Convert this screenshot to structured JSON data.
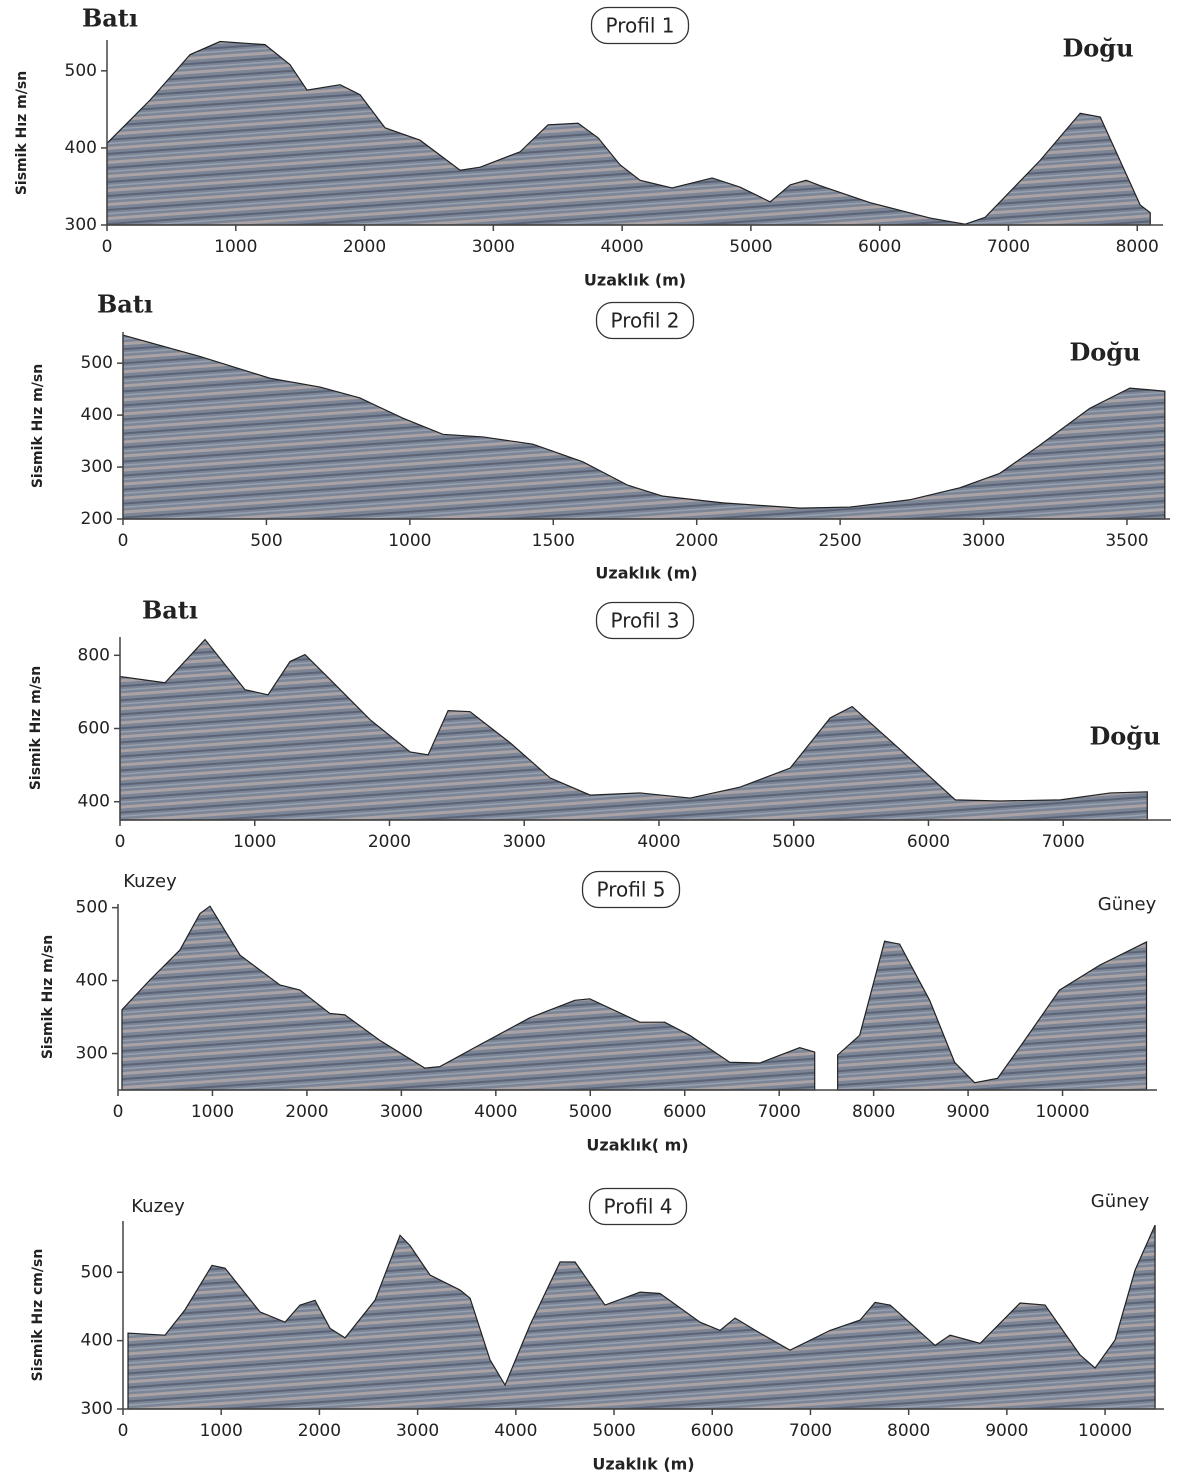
{
  "chart_data": [
    {
      "type": "area",
      "title": "Profil 1",
      "left_label": "Batı",
      "right_label": "Doğu",
      "xlabel": "Uzaklık (m)",
      "ylabel": "Sismik Hız m/sn",
      "color": "#7b8596",
      "x": [
        0,
        334,
        645,
        878,
        1227,
        1421,
        1553,
        1810,
        1965,
        2159,
        2431,
        2742,
        2898,
        3208,
        3425,
        3658,
        3814,
        3984,
        4140,
        4388,
        4699,
        4917,
        5150,
        5305,
        5429,
        5538,
        5926,
        6392,
        6664,
        6819,
        7247,
        7557,
        7713,
        8023,
        8101
      ],
      "values": [
        406,
        462,
        521,
        538,
        534,
        508,
        475,
        482,
        469,
        426,
        410,
        371,
        375,
        395,
        430,
        432,
        413,
        378,
        358,
        348,
        361,
        349,
        330,
        352,
        358,
        351,
        329,
        309,
        301,
        310,
        384,
        445,
        440,
        326,
        316
      ],
      "xlim": [
        0,
        8200
      ],
      "ylim": [
        300,
        540
      ],
      "xticks": [
        0,
        1000,
        2000,
        3000,
        4000,
        5000,
        6000,
        7000,
        8000
      ],
      "yticks": [
        300,
        400,
        500
      ]
    },
    {
      "type": "area",
      "title": "Profil 2",
      "left_label": "Batı",
      "right_label": "Doğu",
      "xlabel": "Uzaklık (m)",
      "ylabel": "Sismik Hız m/sn",
      "color": "#7b8596",
      "x": [
        0,
        268,
        512,
        687,
        826,
        976,
        1115,
        1255,
        1429,
        1603,
        1760,
        1882,
        2091,
        2360,
        2534,
        2743,
        2917,
        3057,
        3196,
        3370,
        3510,
        3632
      ],
      "values": [
        554,
        513,
        471,
        454,
        433,
        394,
        363,
        358,
        344,
        310,
        265,
        244,
        231,
        221,
        223,
        237,
        260,
        288,
        342,
        413,
        452,
        446
      ],
      "xlim": [
        0,
        3650
      ],
      "ylim": [
        200,
        560
      ],
      "xticks": [
        0,
        500,
        1000,
        1500,
        2000,
        2500,
        3000,
        3500
      ],
      "yticks": [
        200,
        300,
        400,
        500
      ]
    },
    {
      "type": "area",
      "title": "Profil 3",
      "left_label": "Batı",
      "right_label": "Doğu",
      "ylabel": "Sismik Hız m/sn",
      "color": "#7b8596",
      "x": [
        0,
        334,
        631,
        928,
        1099,
        1262,
        1373,
        1559,
        1856,
        2153,
        2287,
        2435,
        2598,
        2895,
        3192,
        3489,
        3860,
        4232,
        4603,
        4974,
        5271,
        5434,
        5791,
        6199,
        6533,
        6979,
        7350,
        7624
      ],
      "values": [
        742,
        725,
        843,
        706,
        692,
        783,
        802,
        734,
        624,
        536,
        528,
        649,
        646,
        561,
        465,
        418,
        424,
        410,
        440,
        492,
        629,
        660,
        542,
        405,
        402,
        405,
        424,
        427
      ],
      "xlim": [
        0,
        7800
      ],
      "ylim": [
        350,
        850
      ],
      "xticks": [
        0,
        1000,
        2000,
        3000,
        4000,
        5000,
        6000,
        7000
      ],
      "yticks": [
        400,
        600,
        800
      ]
    },
    {
      "type": "area",
      "title": "Profil 5",
      "left_label": "Kuzey",
      "right_label": "Güney",
      "xlabel": "Uzaklık( m)",
      "ylabel": "Sismik Hız m/sn",
      "color": "#7b8596",
      "x": [
        42,
        339,
        656,
        868,
        974,
        1291,
        1714,
        1926,
        2243,
        2402,
        2772,
        3249,
        3407,
        3831,
        4360,
        4836,
        4995,
        5524,
        5788,
        6053,
        6476,
        6794,
        7217,
        7376,
        7500,
        7619,
        7852,
        8116,
        8275,
        8593,
        8857,
        9069,
        9312,
        9598,
        9968,
        10392,
        10889
      ],
      "values": [
        360,
        401,
        442,
        492,
        502,
        435,
        394,
        387,
        355,
        353,
        318,
        280,
        282,
        312,
        349,
        373,
        375,
        343,
        343,
        325,
        288,
        287,
        308,
        302,
        null,
        298,
        325,
        454,
        450,
        373,
        288,
        260,
        266,
        318,
        387,
        421,
        453
      ],
      "xlim": [
        0,
        11000
      ],
      "ylim": [
        250,
        505
      ],
      "xticks": [
        0,
        1000,
        2000,
        3000,
        4000,
        5000,
        6000,
        7000,
        8000,
        9000,
        10000
      ],
      "yticks": [
        300,
        400,
        500
      ]
    },
    {
      "type": "area",
      "title": "Profil 4",
      "left_label": "Kuzey",
      "right_label": "Güney",
      "xlabel": "Uzaklık (m)",
      "ylabel": "Sismik Hız cm/sn",
      "color": "#7b8596",
      "x": [
        51,
        428,
        631,
        906,
        1039,
        1395,
        1650,
        1802,
        1955,
        2108,
        2261,
        2566,
        2821,
        2923,
        3126,
        3432,
        3534,
        3737,
        3890,
        4145,
        4450,
        4603,
        4908,
        5265,
        5468,
        5876,
        6080,
        6232,
        6487,
        6792,
        7200,
        7505,
        7658,
        7811,
        8269,
        8422,
        8727,
        9134,
        9389,
        9745,
        9898,
        10102,
        10305,
        10509
      ],
      "values": [
        411,
        408,
        445,
        510,
        506,
        442,
        427,
        452,
        459,
        418,
        404,
        459,
        554,
        539,
        496,
        474,
        462,
        372,
        335,
        423,
        515,
        515,
        452,
        471,
        469,
        427,
        415,
        433,
        411,
        386,
        415,
        430,
        456,
        452,
        393,
        408,
        396,
        455,
        452,
        379,
        360,
        401,
        503,
        569
      ],
      "xlim": [
        0,
        10600
      ],
      "ylim": [
        300,
        575
      ],
      "xticks": [
        0,
        1000,
        2000,
        3000,
        4000,
        5000,
        6000,
        7000,
        8000,
        9000,
        10000
      ],
      "yticks": [
        300,
        400,
        500
      ]
    }
  ]
}
